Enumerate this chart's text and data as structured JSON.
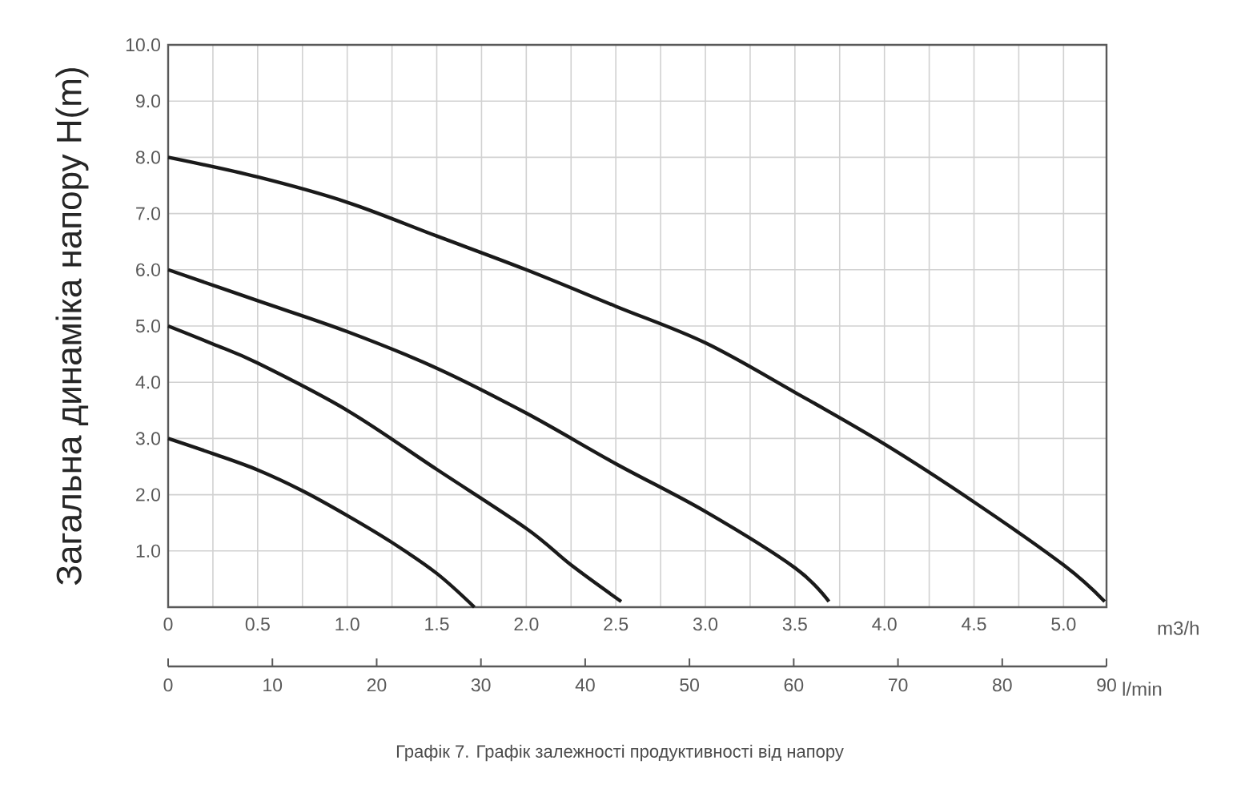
{
  "chart_data": {
    "type": "line",
    "xlabel": "m3/h",
    "ylabel": "Загальна динаміка напору H(m)",
    "x2label": "l/min",
    "annotations": [
      "Графік 7. Графік залежності продуктивності від напору"
    ],
    "xlim": [
      0,
      5.24
    ],
    "ylim": [
      0,
      10
    ],
    "x2lim": [
      0,
      90
    ],
    "xticks": [
      0,
      {
        "value": 0.25,
        "label": null
      },
      0.5,
      {
        "value": 0.75,
        "label": null
      },
      {
        "value": 1,
        "label": "1.0"
      },
      {
        "value": 1.25,
        "label": null
      },
      1.5,
      {
        "value": 1.75,
        "label": null
      },
      {
        "value": 2,
        "label": "2.0"
      },
      {
        "value": 2.25,
        "label": null
      },
      2.5,
      {
        "value": 2.75,
        "label": null
      },
      {
        "value": 3,
        "label": "3.0"
      },
      {
        "value": 3.25,
        "label": null
      },
      3.5,
      {
        "value": 3.75,
        "label": null
      },
      {
        "value": 4,
        "label": "4.0"
      },
      {
        "value": 4.25,
        "label": null
      },
      4.5,
      {
        "value": 4.75,
        "label": null
      },
      {
        "value": 5,
        "label": "5.0"
      }
    ],
    "yticks": [
      {
        "value": 0,
        "label": null
      },
      {
        "value": 1,
        "label": "1.0"
      },
      {
        "value": 2,
        "label": "2.0"
      },
      {
        "value": 3,
        "label": "3.0"
      },
      {
        "value": 4,
        "label": "4.0"
      },
      {
        "value": 5,
        "label": "5.0"
      },
      {
        "value": 6,
        "label": "6.0"
      },
      {
        "value": 7,
        "label": "7.0"
      },
      {
        "value": 8,
        "label": "8.0"
      },
      {
        "value": 9,
        "label": "9.0"
      },
      {
        "value": 10,
        "label": "10.0"
      }
    ],
    "x2ticks": [
      0,
      10,
      20,
      30,
      40,
      50,
      60,
      70,
      80,
      90
    ],
    "grid": true,
    "series": [
      {
        "color": "#1a1a1a",
        "x": [
          0,
          0.5,
          1.0,
          1.5,
          2.0,
          2.5,
          3.0,
          3.5,
          4.0,
          4.5,
          5.0,
          5.23
        ],
        "values": [
          8.0,
          7.65,
          7.2,
          6.6,
          6.0,
          5.35,
          4.7,
          3.82,
          2.9,
          1.87,
          0.75,
          0.1
        ]
      },
      {
        "color": "#1a1a1a",
        "x": [
          0,
          0.5,
          1.0,
          1.5,
          2.0,
          2.5,
          3.0,
          3.5,
          3.69
        ],
        "values": [
          6.0,
          5.45,
          4.9,
          4.25,
          3.45,
          2.55,
          1.7,
          0.7,
          0.1
        ]
      },
      {
        "color": "#1a1a1a",
        "x": [
          0,
          0.25,
          0.5,
          1.0,
          1.5,
          2.0,
          2.25,
          2.53
        ],
        "values": [
          5.0,
          4.68,
          4.34,
          3.5,
          2.45,
          1.4,
          0.75,
          0.1
        ]
      },
      {
        "color": "#1a1a1a",
        "x": [
          0,
          0.25,
          0.5,
          0.75,
          1.0,
          1.25,
          1.5,
          1.71
        ],
        "values": [
          3.0,
          2.73,
          2.44,
          2.07,
          1.63,
          1.15,
          0.6,
          0
        ]
      }
    ]
  }
}
